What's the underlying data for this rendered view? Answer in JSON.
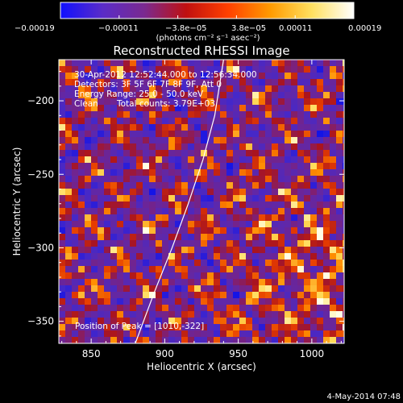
{
  "chart_data": {
    "type": "heatmap",
    "title": "Reconstructed RHESSI Image",
    "xlabel": "Heliocentric X (arcsec)",
    "ylabel": "Heliocentric Y (arcsec)",
    "xlim": [
      828,
      1022
    ],
    "ylim": [
      -365,
      -172
    ],
    "x_ticks": [
      850,
      900,
      950,
      1000
    ],
    "x_tick_labels": [
      "850",
      "900",
      "950",
      "1000"
    ],
    "y_ticks": [
      -200,
      -250,
      -300,
      -350
    ],
    "y_tick_labels": [
      "−200",
      "−250",
      "−300",
      "−350"
    ],
    "colorbar": {
      "range": [
        -0.00019,
        0.00019
      ],
      "tick_labels": [
        "−0.00019",
        "−0.00011",
        "−3.8e−05",
        "3.8e−05",
        "0.00011",
        "0.00019"
      ],
      "unit_label": "(photons cm⁻² s⁻¹ asec⁻²)",
      "colors": [
        "#1010ff",
        "#5a2cc8",
        "#7a2a90",
        "#c01010",
        "#ff4000",
        "#ff9a00",
        "#ffe060",
        "#ffffff"
      ]
    },
    "annotations": {
      "time_range": "30-Apr-2012 12:52:44.000 to 12:56:34.000",
      "detectors": "Detectors: 3F 5F 6F 7F 8F 9F, Att 0",
      "energy_range": "Energy Range: 25.0 - 50.0 keV",
      "clean": "Clean",
      "total_counts": "Total counts: 3.79E+03",
      "peak_position": "Position of Peak = [1010,-322]"
    },
    "peak": [
      1010,
      -322
    ],
    "limb_curve": [
      [
        880,
        -365
      ],
      [
        893,
        -330
      ],
      [
        905,
        -300
      ],
      [
        916,
        -270
      ],
      [
        926,
        -240
      ],
      [
        934,
        -210
      ],
      [
        940,
        -172
      ]
    ]
  },
  "footer": {
    "date": "4-May-2014 07:48"
  }
}
